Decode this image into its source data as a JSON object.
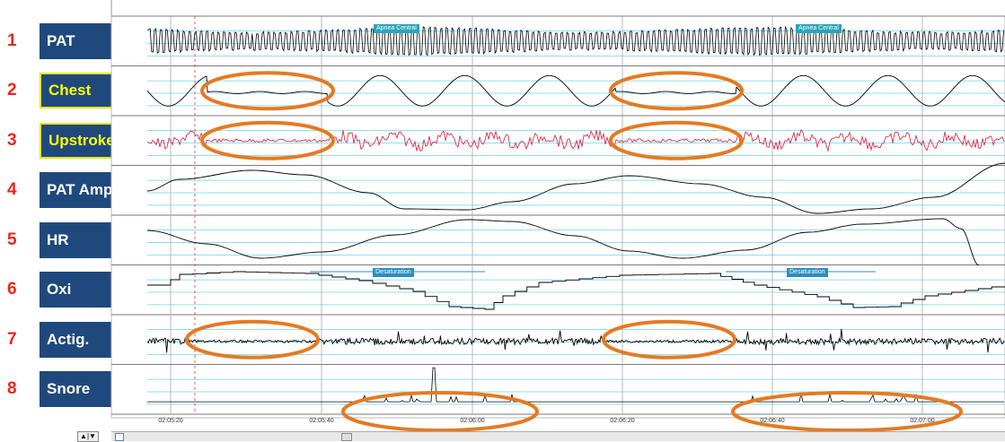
{
  "channels": [
    {
      "number": "1",
      "label": "PAT"
    },
    {
      "number": "2",
      "label": "Chest"
    },
    {
      "number": "3",
      "label": "Upstroke*"
    },
    {
      "number": "4",
      "label": "PAT Amp"
    },
    {
      "number": "5",
      "label": "HR"
    },
    {
      "number": "6",
      "label": "Oxi"
    },
    {
      "number": "7",
      "label": "Actig."
    },
    {
      "number": "8",
      "label": "Snore"
    }
  ],
  "events": {
    "apnea_central_1": "Apnea Central",
    "apnea_central_2": "Apnea Central",
    "desaturation_1": "Desaturation",
    "desaturation_2": "Desaturation"
  },
  "time_axis": {
    "ticks": [
      "02:05:20",
      "02:05:40",
      "02:06:00",
      "02:06:20",
      "02:06:40",
      "02:07:00"
    ]
  },
  "colors": {
    "label_bg": "#1f497d",
    "label_text": "#ffffff",
    "label_highlight_text": "#ffff00",
    "channel_number": "#e8261f",
    "highlight_ellipse": "#e57a22",
    "event_marker": "#2a8fc0",
    "trace": "#000000",
    "upstroke_trace": "#e0304a",
    "baseline": "#37c9e6"
  }
}
